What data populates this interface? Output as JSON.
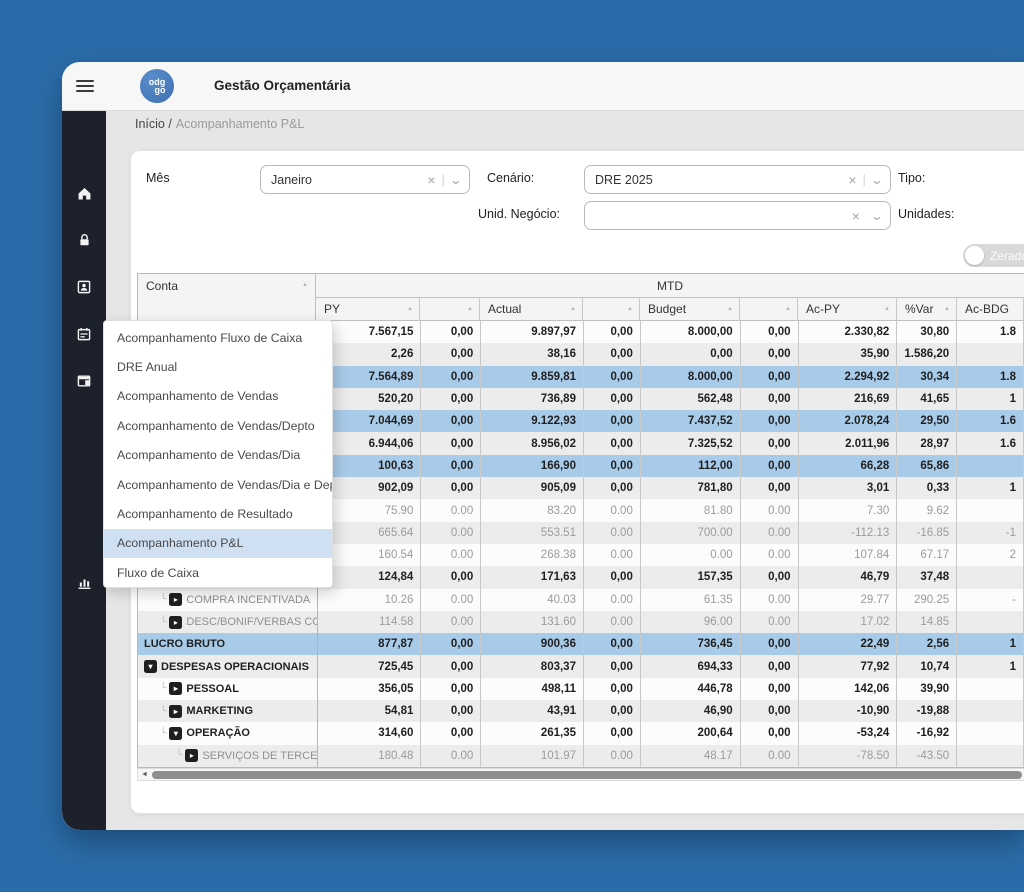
{
  "window": {
    "title": "Gestão Orçamentária"
  },
  "logo": {
    "line1": "odg",
    "line2": "go"
  },
  "breadcrumb": {
    "root": "Início /",
    "current": "Acompanhamento P&L"
  },
  "sidebar": {
    "items": [
      {
        "icon": "home-icon"
      },
      {
        "icon": "lock-icon"
      },
      {
        "icon": "contact-card-icon"
      },
      {
        "icon": "calendar-icon"
      },
      {
        "icon": "table-panel-icon"
      },
      {
        "icon": "bar-chart-icon"
      }
    ]
  },
  "filters": {
    "mes_label": "Mês",
    "mes_value": "Janeiro",
    "cenario_label": "Cenário:",
    "cenario_value": "DRE 2025",
    "tipo_label": "Tipo:",
    "unid_negocio_label": "Unid. Negócio:",
    "unid_negocio_value": "",
    "unidades_label": "Unidades:",
    "zerados_label": "Zerados"
  },
  "menu": {
    "active_index": 7,
    "items": [
      "Acompanhamento Fluxo de Caixa",
      "DRE Anual",
      "Acompanhamento de Vendas",
      "Acompanhamento de Vendas/Depto",
      "Acompanhamento de Vendas/Dia",
      "Acompanhamento de Vendas/Dia e Depto",
      "Acompanhamento de Resultado",
      "Acompanhamento P&L",
      "Fluxo de Caixa"
    ]
  },
  "icons": {
    "clear": "×",
    "chevron": "⌄",
    "divider": "|",
    "sort_asc": "▲",
    "tree": "└",
    "collapsed": "▸",
    "expanded": "▾",
    "scroll_left": "◄"
  },
  "table": {
    "conta_header": "Conta",
    "group_header": "MTD",
    "columns": [
      "PY",
      "",
      "Actual",
      "",
      "Budget",
      "",
      "Ac-PY",
      "%Var",
      "Ac-BDG"
    ],
    "rows": [
      {
        "label": "",
        "indent": 0,
        "icon": "none",
        "style": "bold",
        "cells": [
          "7.567,15",
          "0,00",
          "9.897,97",
          "0,00",
          "8.000,00",
          "0,00",
          "2.330,82",
          "30,80",
          "1.8"
        ]
      },
      {
        "label": "",
        "indent": 0,
        "icon": "none",
        "style": "bold",
        "cells": [
          "2,26",
          "0,00",
          "38,16",
          "0,00",
          "0,00",
          "0,00",
          "35,90",
          "1.586,20",
          ""
        ]
      },
      {
        "label": "",
        "indent": 0,
        "icon": "none",
        "style": "hl",
        "cells": [
          "7.564,89",
          "0,00",
          "9.859,81",
          "0,00",
          "8.000,00",
          "0,00",
          "2.294,92",
          "30,34",
          "1.8"
        ]
      },
      {
        "label": "",
        "indent": 0,
        "icon": "none",
        "style": "bold",
        "cells": [
          "520,20",
          "0,00",
          "736,89",
          "0,00",
          "562,48",
          "0,00",
          "216,69",
          "41,65",
          "1"
        ]
      },
      {
        "label": "",
        "indent": 0,
        "icon": "none",
        "style": "hl",
        "cells": [
          "7.044,69",
          "0,00",
          "9.122,93",
          "0,00",
          "7.437,52",
          "0,00",
          "2.078,24",
          "29,50",
          "1.6"
        ]
      },
      {
        "label": "",
        "indent": 0,
        "icon": "none",
        "style": "bold",
        "cells": [
          "6.944,06",
          "0,00",
          "8.956,02",
          "0,00",
          "7.325,52",
          "0,00",
          "2.011,96",
          "28,97",
          "1.6"
        ]
      },
      {
        "label": "",
        "indent": 0,
        "icon": "none",
        "style": "hl",
        "cells": [
          "100,63",
          "0,00",
          "166,90",
          "0,00",
          "112,00",
          "0,00",
          "66,28",
          "65,86",
          ""
        ]
      },
      {
        "label": "",
        "indent": 0,
        "icon": "none",
        "style": "bold",
        "cells": [
          "902,09",
          "0,00",
          "905,09",
          "0,00",
          "781,80",
          "0,00",
          "3,01",
          "0,33",
          "1"
        ]
      },
      {
        "label": "",
        "indent": 0,
        "icon": "none",
        "style": "light",
        "cells": [
          "75.90",
          "0.00",
          "83.20",
          "0.00",
          "81.80",
          "0.00",
          "7.30",
          "9.62",
          ""
        ]
      },
      {
        "label": "",
        "indent": 0,
        "icon": "none",
        "style": "light",
        "cells": [
          "665.64",
          "0.00",
          "553.51",
          "0.00",
          "700.00",
          "0.00",
          "-112.13",
          "-16.85",
          "-1"
        ]
      },
      {
        "label": "",
        "indent": 0,
        "icon": "none",
        "style": "light",
        "cells": [
          "160.54",
          "0.00",
          "268.38",
          "0.00",
          "0.00",
          "0.00",
          "107.84",
          "67.17",
          "2"
        ]
      },
      {
        "label": "",
        "indent": 0,
        "icon": "none",
        "style": "bold",
        "cells": [
          "124,84",
          "0,00",
          "171,63",
          "0,00",
          "157,35",
          "0,00",
          "46,79",
          "37,48",
          ""
        ]
      },
      {
        "label": "COMPRA INCENTIVADA",
        "indent": 1,
        "icon": "collapsed",
        "style": "light",
        "cells": [
          "10.26",
          "0.00",
          "40.03",
          "0.00",
          "61.35",
          "0.00",
          "29.77",
          "290.25",
          "-"
        ]
      },
      {
        "label": "DESC/BONIF/VERBAS CO...",
        "indent": 1,
        "icon": "collapsed",
        "style": "light",
        "cells": [
          "114.58",
          "0.00",
          "131.60",
          "0.00",
          "96.00",
          "0.00",
          "17.02",
          "14.85",
          ""
        ]
      },
      {
        "label": "LUCRO BRUTO",
        "indent": 0,
        "icon": "none",
        "style": "hl",
        "cells": [
          "877,87",
          "0,00",
          "900,36",
          "0,00",
          "736,45",
          "0,00",
          "22,49",
          "2,56",
          "1"
        ]
      },
      {
        "label": "DESPESAS OPERACIONAIS",
        "indent": 0,
        "icon": "expanded",
        "style": "bold",
        "cells": [
          "725,45",
          "0,00",
          "803,37",
          "0,00",
          "694,33",
          "0,00",
          "77,92",
          "10,74",
          "1"
        ]
      },
      {
        "label": "PESSOAL",
        "indent": 1,
        "icon": "collapsed",
        "style": "bold",
        "cells": [
          "356,05",
          "0,00",
          "498,11",
          "0,00",
          "446,78",
          "0,00",
          "142,06",
          "39,90",
          ""
        ]
      },
      {
        "label": "MARKETING",
        "indent": 1,
        "icon": "collapsed",
        "style": "bold",
        "cells": [
          "54,81",
          "0,00",
          "43,91",
          "0,00",
          "46,90",
          "0,00",
          "-10,90",
          "-19,88",
          ""
        ]
      },
      {
        "label": "OPERAÇÃO",
        "indent": 1,
        "icon": "expanded",
        "style": "bold",
        "cells": [
          "314,60",
          "0,00",
          "261,35",
          "0,00",
          "200,64",
          "0,00",
          "-53,24",
          "-16,92",
          ""
        ]
      },
      {
        "label": "SERVIÇOS DE TERCEIROS",
        "indent": 2,
        "icon": "collapsed",
        "style": "light",
        "cells": [
          "180.48",
          "0.00",
          "101.97",
          "0.00",
          "48.17",
          "0.00",
          "-78.50",
          "-43.50",
          ""
        ]
      }
    ]
  }
}
